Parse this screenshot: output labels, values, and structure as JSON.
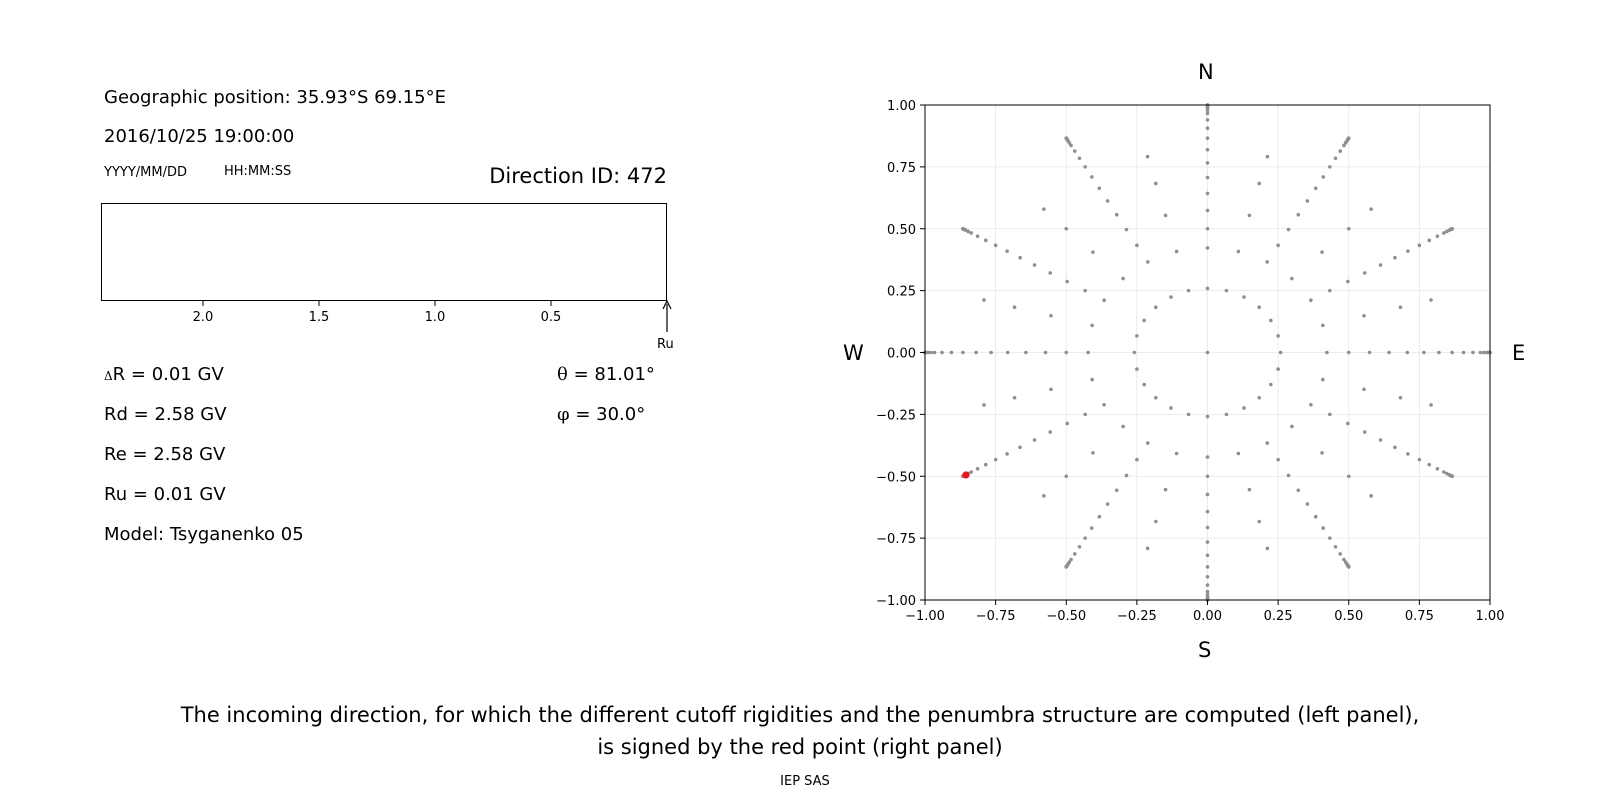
{
  "left_panel": {
    "geo_position": "Geographic position: 35.93°S 69.15°E",
    "datetime": "2016/10/25 19:00:00",
    "date_format": "YYYY/MM/DD",
    "time_format": "HH:MM:SS",
    "direction_id": "Direction ID: 472",
    "rigidity_axis": {
      "ticks": [
        "2.0",
        "1.5",
        "1.0",
        "0.5"
      ],
      "tick_values": [
        2.0,
        1.5,
        1.0,
        0.5
      ],
      "ru_label": "Ru"
    },
    "delta_r_symbol": "Δ",
    "delta_r": "R = 0.01 GV",
    "rd": "Rd = 2.58 GV",
    "re": "Re = 2.58 GV",
    "ru": "Ru = 0.01 GV",
    "model": "Model: Tsyganenko 05",
    "theta_symbol": "θ",
    "theta": " = 81.01°",
    "phi_symbol": "φ",
    "phi": " = 30.0°"
  },
  "chart_data": {
    "type": "scatter",
    "compass": {
      "north": "N",
      "south": "S",
      "west": "W",
      "east": "E"
    },
    "xlim": [
      -1.0,
      1.0
    ],
    "ylim": [
      -1.0,
      1.0
    ],
    "xticks": [
      "−1.00",
      "−0.75",
      "−0.50",
      "−0.25",
      "0.00",
      "0.25",
      "0.50",
      "0.75",
      "1.00"
    ],
    "yticks": [
      "1.00",
      "0.75",
      "0.50",
      "0.25",
      "0.00",
      "−0.25",
      "−0.50",
      "−0.75",
      "−1.00"
    ],
    "grid": true,
    "series": [
      {
        "color": "#8f8f8f",
        "description_rule": "x = sin(theta°)·cos(phi°), y = sin(theta°)·sin(phi°)",
        "rings": [
          {
            "theta_deg": 0,
            "phi_step_deg": 360
          },
          {
            "theta_deg": 15,
            "phi_step_deg": 15
          },
          {
            "theta_deg": 25,
            "phi_step_deg": 15
          },
          {
            "theta_deg": 30,
            "phi_step_deg": 30
          },
          {
            "theta_deg": 35,
            "phi_step_deg": 15
          },
          {
            "theta_deg": 40,
            "phi_step_deg": 30
          },
          {
            "theta_deg": 45,
            "phi_step_deg": 15
          },
          {
            "theta_deg": 50,
            "phi_step_deg": 30
          },
          {
            "theta_deg": 55,
            "phi_step_deg": 15
          },
          {
            "theta_deg": 60,
            "phi_step_deg": 30
          },
          {
            "theta_deg": 65,
            "phi_step_deg": 30
          },
          {
            "theta_deg": 70,
            "phi_step_deg": 30
          },
          {
            "theta_deg": 75,
            "phi_step_deg": 30
          },
          {
            "theta_deg": 78,
            "phi_step_deg": 30
          },
          {
            "theta_deg": 81,
            "phi_step_deg": 30
          },
          {
            "theta_deg": 83,
            "phi_step_deg": 30
          },
          {
            "theta_deg": 85,
            "phi_step_deg": 30
          },
          {
            "theta_deg": 86.5,
            "phi_step_deg": 30
          },
          {
            "theta_deg": 88,
            "phi_step_deg": 30
          },
          {
            "theta_deg": 89,
            "phi_step_deg": 30
          },
          {
            "theta_deg": 90,
            "phi_step_deg": 30
          }
        ]
      },
      {
        "color": "#e8161b",
        "points": [
          {
            "x": -0.855,
            "y": -0.495
          }
        ]
      }
    ]
  },
  "footer": {
    "caption_line1": "The incoming direction, for which the different cutoff rigidities and the penumbra structure are computed (left panel),",
    "caption_line2": "is signed by the red point (right panel)",
    "credit": "IEP SAS"
  }
}
